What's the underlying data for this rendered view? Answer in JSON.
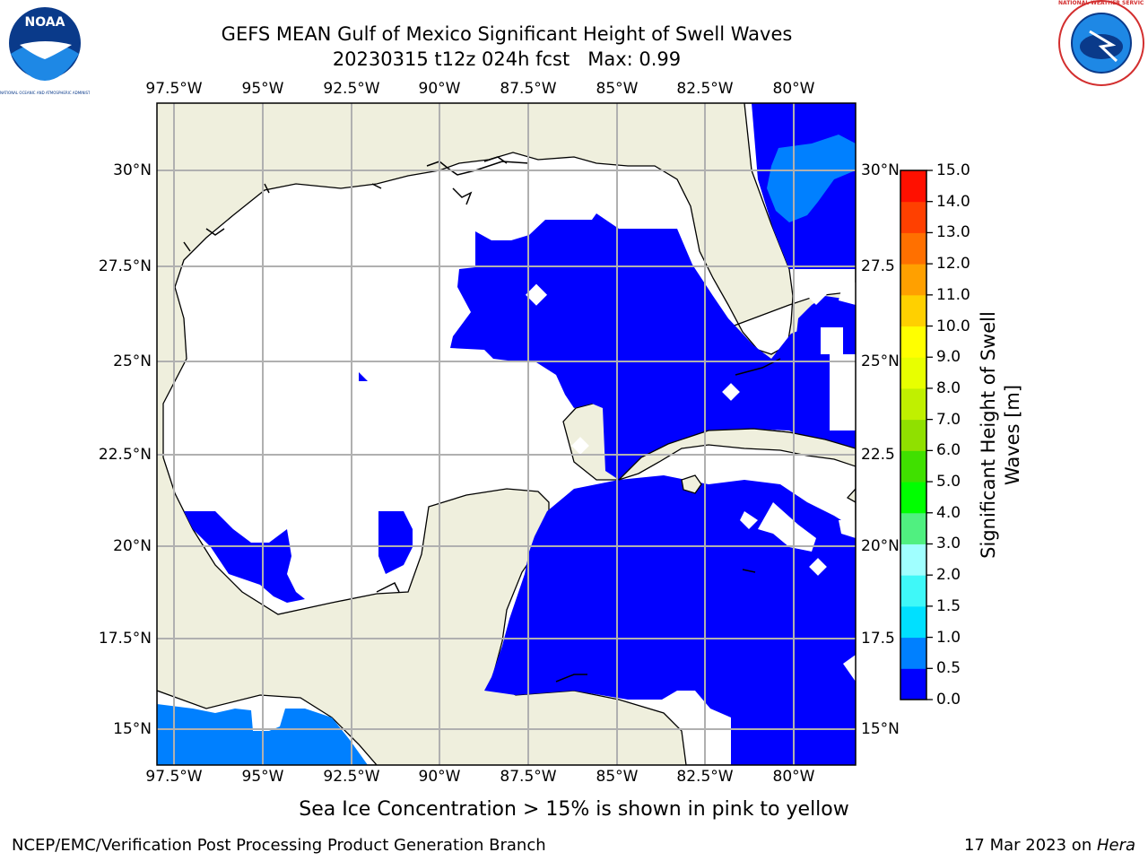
{
  "header": {
    "title_line1": "GEFS MEAN Gulf of Mexico Significant Height of Swell Waves",
    "title_line2": "20230315 t12z 024h fcst   Max: 0.99"
  },
  "logos": {
    "noaa": {
      "text": "NOAA",
      "ring_text": "NATIONAL OCEANIC AND ATMOSPHERIC ADMINISTRATION · U.S. DEPARTMENT OF COMMERCE"
    },
    "nws": {
      "ring_text": "NATIONAL WEATHER SERVICE"
    }
  },
  "map": {
    "lon_ticks": [
      "97.5°W",
      "95°W",
      "92.5°W",
      "90°W",
      "87.5°W",
      "85°W",
      "82.5°W",
      "80°W"
    ],
    "lat_ticks_left": [
      "30°N",
      "27.5°N",
      "25°N",
      "22.5°N",
      "20°N",
      "17.5°N",
      "15°N"
    ],
    "lat_ticks_right": [
      "30°N",
      "27.5",
      "25°N",
      "22.5",
      "20°N",
      "17.5",
      "15°N"
    ],
    "colors": {
      "land": "#efefdd",
      "sea": "#ffffff",
      "swell_0_05": "#0000ff",
      "swell_05_10": "#0080ff",
      "grid": "#b0b0b0"
    }
  },
  "colorbar": {
    "label": "Significant Height of Swell Waves [m]",
    "ticks": [
      "0.0",
      "0.5",
      "1.0",
      "1.5",
      "2.0",
      "3.0",
      "4.0",
      "5.0",
      "6.0",
      "7.0",
      "8.0",
      "9.0",
      "10.0",
      "11.0",
      "12.0",
      "13.0",
      "14.0",
      "15.0"
    ],
    "colors": [
      "#0000ff",
      "#0080ff",
      "#00e0ff",
      "#3ff8f8",
      "#a0ffff",
      "#50f080",
      "#00ff00",
      "#40e000",
      "#90e000",
      "#c0f000",
      "#e8ff00",
      "#ffff00",
      "#ffd000",
      "#ffa000",
      "#ff7000",
      "#ff4000",
      "#ff1000"
    ]
  },
  "note": "Sea Ice Concentration > 15% is shown in pink to yellow",
  "footer": {
    "left": "NCEP/EMC/Verification Post Processing Product Generation Branch",
    "right_prefix": "17 Mar 2023 on ",
    "right_host": "Hera"
  }
}
